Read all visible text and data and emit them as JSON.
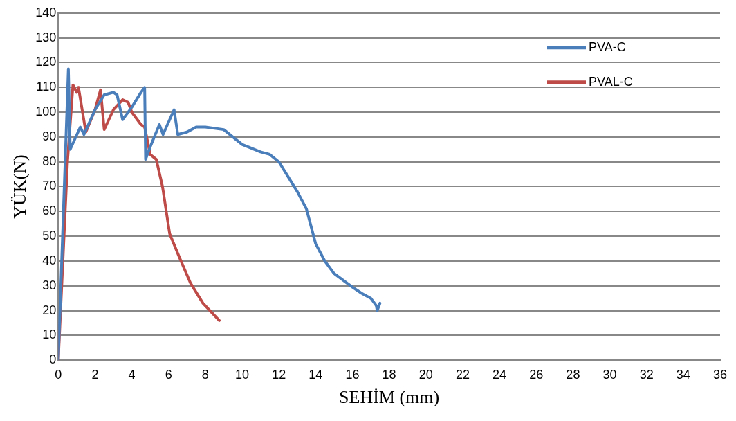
{
  "chart_data": {
    "type": "line",
    "xlabel": "SEHİM (mm)",
    "ylabel": "YÜK(N)",
    "xlim": [
      0,
      36
    ],
    "xticks": [
      0,
      2,
      4,
      6,
      8,
      10,
      12,
      14,
      16,
      18,
      20,
      22,
      24,
      26,
      28,
      30,
      32,
      34,
      36
    ],
    "ylim": [
      0,
      140
    ],
    "yticks": [
      0,
      10,
      20,
      30,
      40,
      50,
      60,
      70,
      80,
      90,
      100,
      110,
      120,
      130,
      140
    ],
    "grid": "y",
    "legend": "top right",
    "marker": "none",
    "line_style": "solid",
    "series": [
      {
        "name": "PVA-C",
        "color": "#4a7ebb",
        "x": [
          0,
          0.55,
          0.65,
          1.2,
          1.4,
          2,
          2.5,
          3,
          3.2,
          3.5,
          4,
          4.5,
          4.7,
          4.75,
          5,
          5.5,
          5.7,
          6.3,
          6.5,
          7,
          7.5,
          8,
          9,
          9.5,
          10,
          11,
          11.5,
          12,
          12.5,
          13,
          13.5,
          14,
          14.5,
          15,
          16,
          16.5,
          17,
          17.3,
          17.35,
          17.5
        ],
        "values": [
          0,
          117.5,
          85,
          94,
          91,
          101,
          107,
          108,
          107,
          97,
          102,
          108,
          110,
          81,
          86,
          95,
          91,
          101,
          91,
          92,
          94,
          94,
          93,
          90,
          87,
          84,
          83,
          80,
          74,
          68,
          61,
          47,
          40,
          35,
          29.5,
          27,
          25,
          22,
          20,
          23
        ]
      },
      {
        "name": "PVAL-C",
        "color": "#be4b48",
        "x": [
          0,
          0.5,
          0.8,
          1,
          1.1,
          1.5,
          2,
          2.3,
          2.5,
          3,
          3.5,
          3.8,
          4,
          4.5,
          4.7,
          5,
          5.33,
          5.67,
          6.06,
          6.56,
          7.2,
          7.87,
          8.76
        ],
        "values": [
          0,
          80,
          111,
          108,
          110,
          92,
          101,
          109,
          93,
          101,
          105,
          104,
          100,
          95,
          94,
          83,
          81,
          70,
          51,
          42,
          31,
          23,
          16
        ]
      }
    ]
  }
}
